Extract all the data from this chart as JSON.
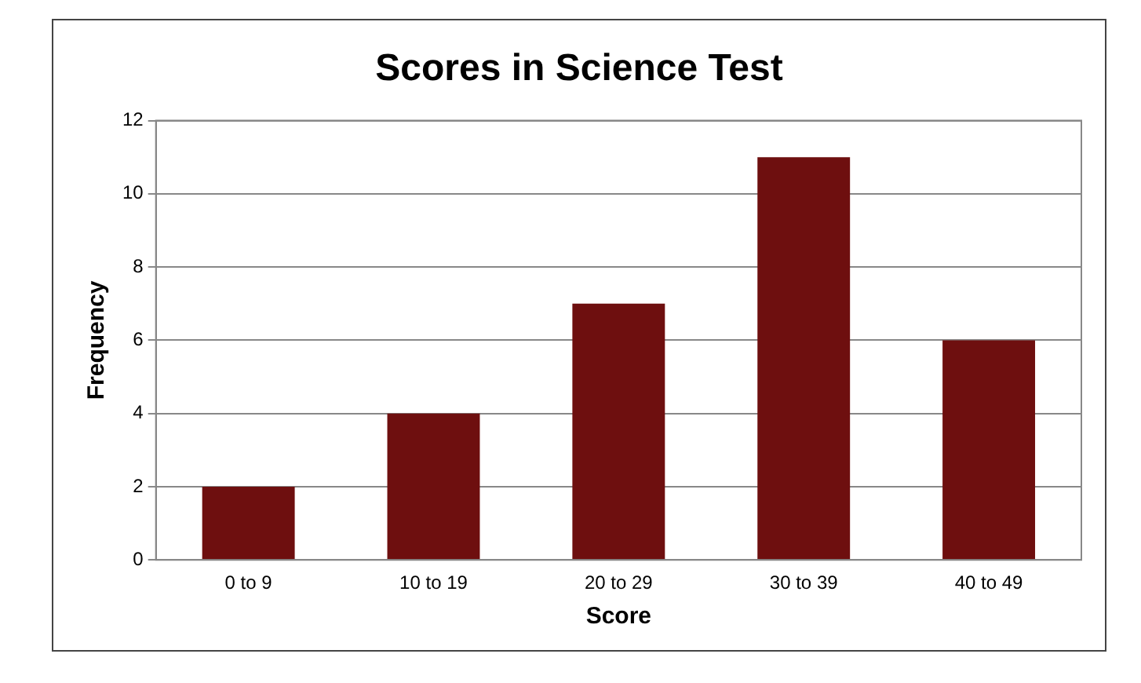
{
  "chart_data": {
    "type": "bar",
    "title": "Scores in Science Test",
    "xlabel": "Score",
    "ylabel": "Frequency",
    "categories": [
      "0 to 9",
      "10 to 19",
      "20 to 29",
      "30 to 39",
      "40 to 49"
    ],
    "values": [
      2,
      4,
      7,
      11,
      6
    ],
    "color": "#6e0f0f",
    "ylim": [
      0,
      12
    ],
    "yticks": [
      0,
      2,
      4,
      6,
      8,
      10,
      12
    ],
    "grid": "y"
  }
}
